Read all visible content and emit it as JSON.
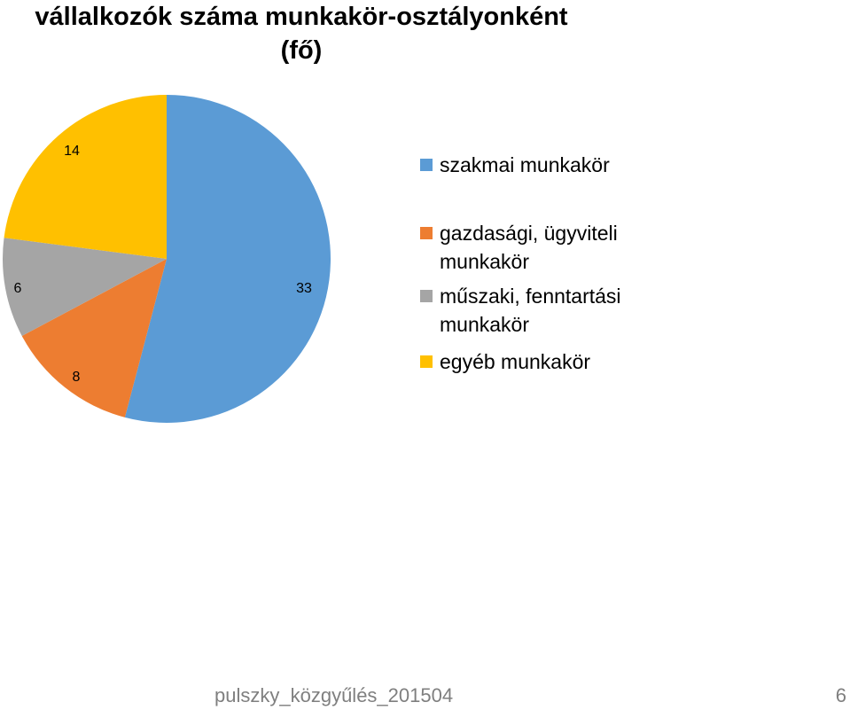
{
  "title_lines": [
    "vállalkozók száma munkakör-osztályonként",
    "(fő)"
  ],
  "colors": [
    "#5b9bd5",
    "#ed7d31",
    "#a5a5a5",
    "#ffc000"
  ],
  "chart_data": {
    "type": "pie",
    "categories": [
      "szakmai munkakör",
      "gazdasági, ügyviteli munkakör",
      "műszaki, fenntartási munkakör",
      "egyéb munkakör"
    ],
    "values": [
      33,
      8,
      6,
      14
    ],
    "data_labels": [
      "33",
      "8",
      "6",
      "14"
    ],
    "legend_position": "right"
  },
  "legend": [
    {
      "label": "szakmai munkakör"
    },
    {
      "label": "gazdasági, ügyviteli munkakör"
    },
    {
      "label": "műszaki, fenntartási munkakör"
    },
    {
      "label": "egyéb munkakör"
    }
  ],
  "footer": {
    "left": "pulszky_közgyűlés_201504",
    "page": "6"
  }
}
